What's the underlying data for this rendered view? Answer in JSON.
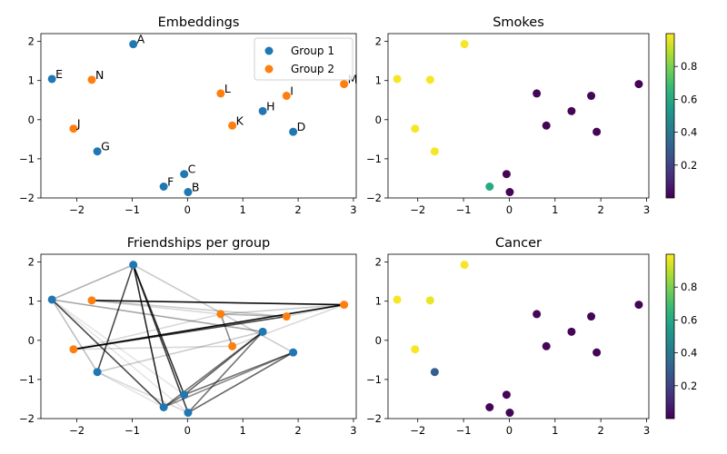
{
  "chart_data": [
    {
      "type": "scatter",
      "title": "Embeddings",
      "xlabel": "",
      "ylabel": "",
      "xlim": [
        -2.65,
        3.05
      ],
      "ylim": [
        -2.0,
        2.2
      ],
      "xticks": [
        "−2",
        "−1",
        "0",
        "1",
        "2",
        "3"
      ],
      "yticks": [
        "−2",
        "−1",
        "0",
        "1",
        "2"
      ],
      "legend_position": "upper right",
      "series": [
        {
          "name": "Group 1",
          "color": "#1f77b4",
          "points": [
            {
              "label": "A",
              "x": -0.98,
              "y": 1.93
            },
            {
              "label": "B",
              "x": 0.01,
              "y": -1.85
            },
            {
              "label": "C",
              "x": -0.06,
              "y": -1.39
            },
            {
              "label": "E",
              "x": -2.45,
              "y": 1.04
            },
            {
              "label": "F",
              "x": -0.43,
              "y": -1.71
            },
            {
              "label": "G",
              "x": -1.63,
              "y": -0.81
            },
            {
              "label": "H",
              "x": 1.36,
              "y": 0.22
            },
            {
              "label": "D",
              "x": 1.91,
              "y": -0.31
            }
          ]
        },
        {
          "name": "Group 2",
          "color": "#ff7f0e",
          "points": [
            {
              "label": "J",
              "x": -2.06,
              "y": -0.23
            },
            {
              "label": "N",
              "x": -1.73,
              "y": 1.02
            },
            {
              "label": "L",
              "x": 0.6,
              "y": 0.67
            },
            {
              "label": "K",
              "x": 0.81,
              "y": -0.15
            },
            {
              "label": "I",
              "x": 1.79,
              "y": 0.61
            },
            {
              "label": "M",
              "x": 2.83,
              "y": 0.91
            }
          ]
        }
      ]
    },
    {
      "type": "scatter",
      "title": "Smokes",
      "xlim": [
        -2.65,
        3.05
      ],
      "ylim": [
        -2.0,
        2.2
      ],
      "xticks": [
        "−2",
        "−1",
        "0",
        "1",
        "2",
        "3"
      ],
      "yticks": [
        "−2",
        "−1",
        "0",
        "1",
        "2"
      ],
      "colorbar": {
        "colormap": "viridis",
        "ticks": [
          "0.2",
          "0.4",
          "0.6",
          "0.8"
        ]
      },
      "points": [
        {
          "x": -0.98,
          "y": 1.93,
          "value": 0.99
        },
        {
          "x": -2.45,
          "y": 1.04,
          "value": 0.99
        },
        {
          "x": -1.73,
          "y": 1.02,
          "value": 0.99
        },
        {
          "x": -2.06,
          "y": -0.23,
          "value": 0.99
        },
        {
          "x": -1.63,
          "y": -0.81,
          "value": 0.99
        },
        {
          "x": -0.43,
          "y": -1.71,
          "value": 0.6
        },
        {
          "x": -0.06,
          "y": -1.39,
          "value": 0.01
        },
        {
          "x": 0.01,
          "y": -1.85,
          "value": 0.01
        },
        {
          "x": 0.6,
          "y": 0.67,
          "value": 0.01
        },
        {
          "x": 0.81,
          "y": -0.15,
          "value": 0.01
        },
        {
          "x": 1.36,
          "y": 0.22,
          "value": 0.01
        },
        {
          "x": 1.79,
          "y": 0.61,
          "value": 0.01
        },
        {
          "x": 1.91,
          "y": -0.31,
          "value": 0.01
        },
        {
          "x": 2.83,
          "y": 0.91,
          "value": 0.01
        }
      ]
    },
    {
      "type": "scatter",
      "title": "Friendships per group",
      "xlim": [
        -2.65,
        3.05
      ],
      "ylim": [
        -2.0,
        2.2
      ],
      "xticks": [
        "−2",
        "−1",
        "0",
        "1",
        "2",
        "3"
      ],
      "yticks": [
        "−2",
        "−1",
        "0",
        "1",
        "2"
      ],
      "edges": [
        {
          "from": "A",
          "to": "F",
          "weight": 0.85
        },
        {
          "from": "A",
          "to": "C",
          "weight": 0.8
        },
        {
          "from": "A",
          "to": "B",
          "weight": 0.75
        },
        {
          "from": "A",
          "to": "G",
          "weight": 0.7
        },
        {
          "from": "A",
          "to": "E",
          "weight": 0.3
        },
        {
          "from": "A",
          "to": "D",
          "weight": 0.2
        },
        {
          "from": "E",
          "to": "F",
          "weight": 0.7
        },
        {
          "from": "E",
          "to": "H",
          "weight": 0.35
        },
        {
          "from": "E",
          "to": "G",
          "weight": 0.25
        },
        {
          "from": "E",
          "to": "B",
          "weight": 0.1
        },
        {
          "from": "E",
          "to": "C",
          "weight": 0.1
        },
        {
          "from": "G",
          "to": "B",
          "weight": 0.15
        },
        {
          "from": "G",
          "to": "F",
          "weight": 0.1
        },
        {
          "from": "G",
          "to": "H",
          "weight": 0.2
        },
        {
          "from": "F",
          "to": "H",
          "weight": 0.55
        },
        {
          "from": "F",
          "to": "C",
          "weight": 0.55
        },
        {
          "from": "F",
          "to": "D",
          "weight": 0.45
        },
        {
          "from": "C",
          "to": "H",
          "weight": 0.6
        },
        {
          "from": "C",
          "to": "D",
          "weight": 0.55
        },
        {
          "from": "B",
          "to": "H",
          "weight": 0.55
        },
        {
          "from": "B",
          "to": "D",
          "weight": 0.6
        },
        {
          "from": "N",
          "to": "M",
          "weight": 0.95
        },
        {
          "from": "J",
          "to": "M",
          "weight": 0.95
        },
        {
          "from": "J",
          "to": "I",
          "weight": 0.75
        },
        {
          "from": "J",
          "to": "K",
          "weight": 0.15
        },
        {
          "from": "J",
          "to": "L",
          "weight": 0.15
        },
        {
          "from": "N",
          "to": "I",
          "weight": 0.2
        },
        {
          "from": "N",
          "to": "L",
          "weight": 0.15
        },
        {
          "from": "L",
          "to": "K",
          "weight": 0.45
        },
        {
          "from": "L",
          "to": "I",
          "weight": 0.3
        },
        {
          "from": "L",
          "to": "M",
          "weight": 0.2
        },
        {
          "from": "K",
          "to": "M",
          "weight": 0.15
        },
        {
          "from": "I",
          "to": "M",
          "weight": 0.15
        }
      ]
    },
    {
      "type": "scatter",
      "title": "Cancer",
      "xlim": [
        -2.65,
        3.05
      ],
      "ylim": [
        -2.0,
        2.2
      ],
      "xticks": [
        "−2",
        "−1",
        "0",
        "1",
        "2",
        "3"
      ],
      "yticks": [
        "−2",
        "−1",
        "0",
        "1",
        "2"
      ],
      "colorbar": {
        "colormap": "viridis",
        "ticks": [
          "0.2",
          "0.4",
          "0.6",
          "0.8"
        ]
      },
      "points": [
        {
          "x": -0.98,
          "y": 1.93,
          "value": 0.99
        },
        {
          "x": -2.45,
          "y": 1.04,
          "value": 0.99
        },
        {
          "x": -1.73,
          "y": 1.02,
          "value": 0.97
        },
        {
          "x": -2.06,
          "y": -0.23,
          "value": 0.99
        },
        {
          "x": -1.63,
          "y": -0.81,
          "value": 0.3
        },
        {
          "x": -0.43,
          "y": -1.71,
          "value": 0.01
        },
        {
          "x": -0.06,
          "y": -1.39,
          "value": 0.01
        },
        {
          "x": 0.01,
          "y": -1.85,
          "value": 0.01
        },
        {
          "x": 0.6,
          "y": 0.67,
          "value": 0.01
        },
        {
          "x": 0.81,
          "y": -0.15,
          "value": 0.01
        },
        {
          "x": 1.36,
          "y": 0.22,
          "value": 0.01
        },
        {
          "x": 1.79,
          "y": 0.61,
          "value": 0.01
        },
        {
          "x": 1.91,
          "y": -0.31,
          "value": 0.01
        },
        {
          "x": 2.83,
          "y": 0.91,
          "value": 0.01
        }
      ]
    }
  ]
}
